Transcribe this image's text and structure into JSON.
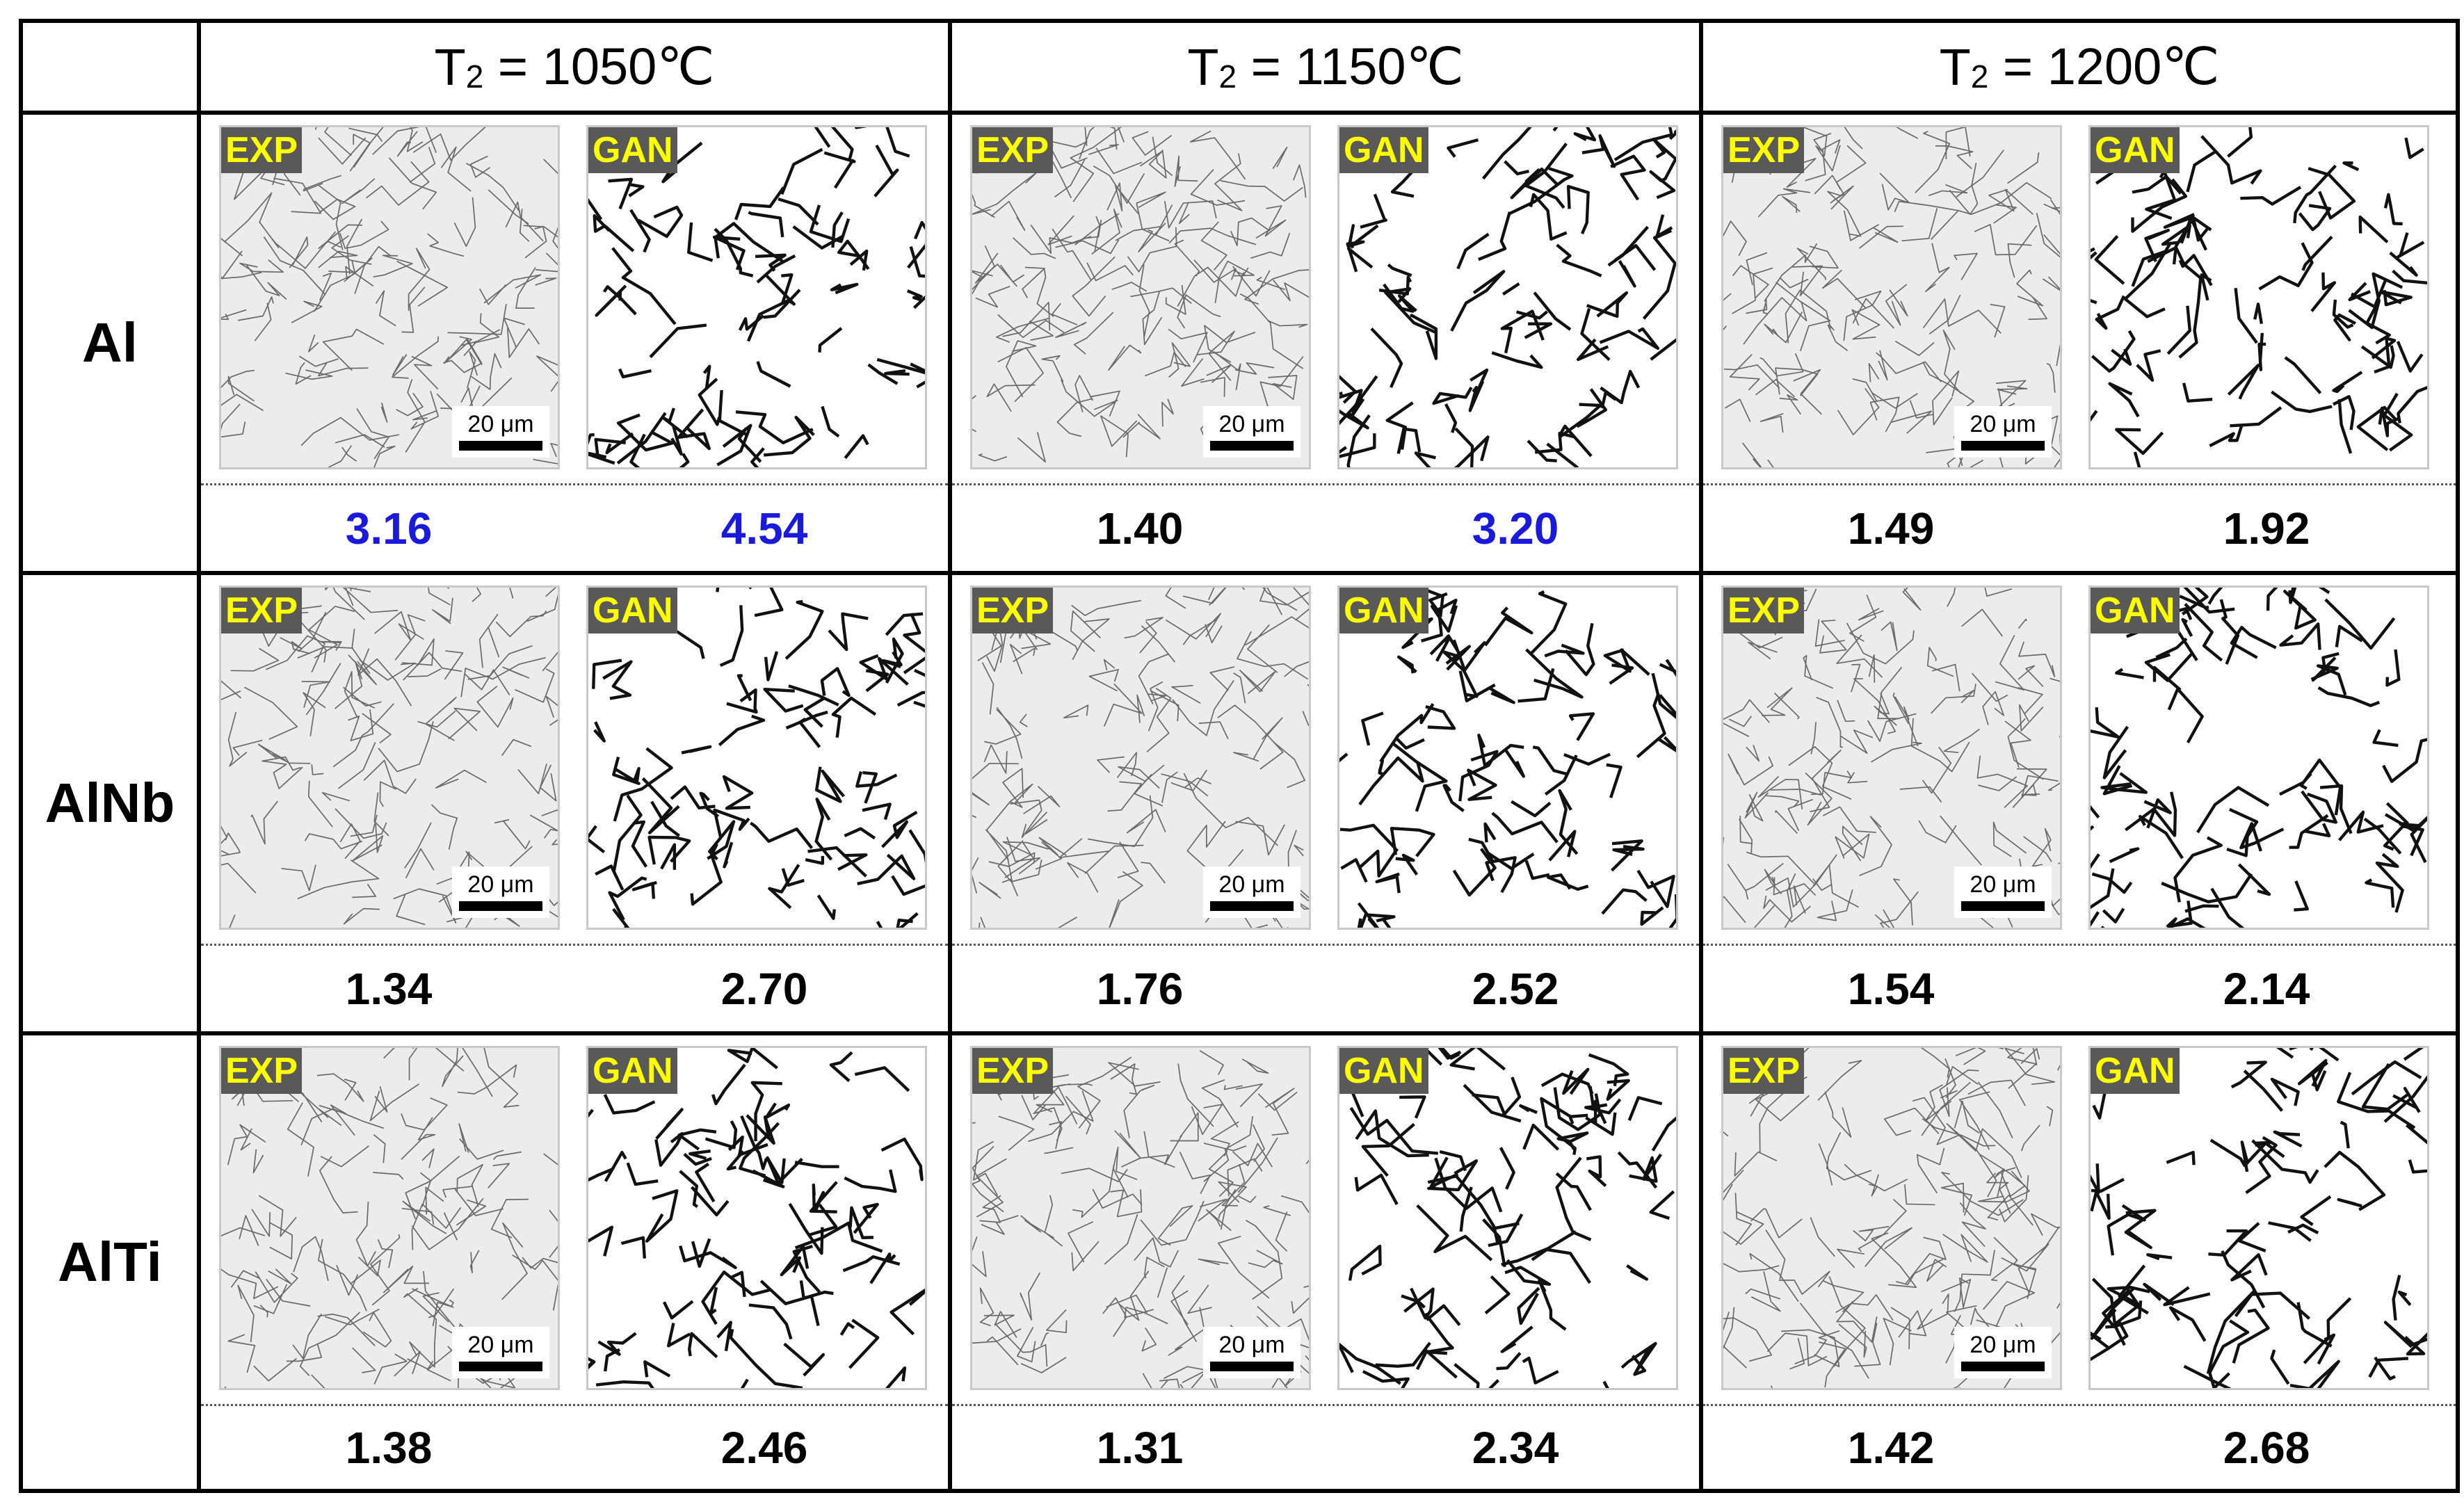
{
  "header": {
    "columns": [
      {
        "prefix": "T",
        "sub": "2",
        "suffix": " = 1050℃"
      },
      {
        "prefix": "T",
        "sub": "2",
        "suffix": " = 1150℃"
      },
      {
        "prefix": "T",
        "sub": "2",
        "suffix": " = 1200℃"
      }
    ]
  },
  "labels": {
    "exp": "EXP",
    "gan": "GAN",
    "scale": "20 μm"
  },
  "rows": [
    {
      "name": "Al",
      "values": [
        {
          "exp": "3.16",
          "gan": "4.54",
          "exp_color": "#1a1adb",
          "gan_color": "#1a1adb"
        },
        {
          "exp": "1.40",
          "gan": "3.20",
          "exp_color": "#000000",
          "gan_color": "#1a1adb"
        },
        {
          "exp": "1.49",
          "gan": "1.92",
          "exp_color": "#000000",
          "gan_color": "#000000"
        }
      ]
    },
    {
      "name": "AlNb",
      "values": [
        {
          "exp": "1.34",
          "gan": "2.70",
          "exp_color": "#000000",
          "gan_color": "#000000"
        },
        {
          "exp": "1.76",
          "gan": "2.52",
          "exp_color": "#000000",
          "gan_color": "#000000"
        },
        {
          "exp": "1.54",
          "gan": "2.14",
          "exp_color": "#000000",
          "gan_color": "#000000"
        }
      ]
    },
    {
      "name": "AlTi",
      "values": [
        {
          "exp": "1.38",
          "gan": "2.46",
          "exp_color": "#000000",
          "gan_color": "#000000"
        },
        {
          "exp": "1.31",
          "gan": "2.34",
          "exp_color": "#000000",
          "gan_color": "#000000"
        },
        {
          "exp": "1.42",
          "gan": "2.68",
          "exp_color": "#000000",
          "gan_color": "#000000"
        }
      ]
    }
  ]
}
